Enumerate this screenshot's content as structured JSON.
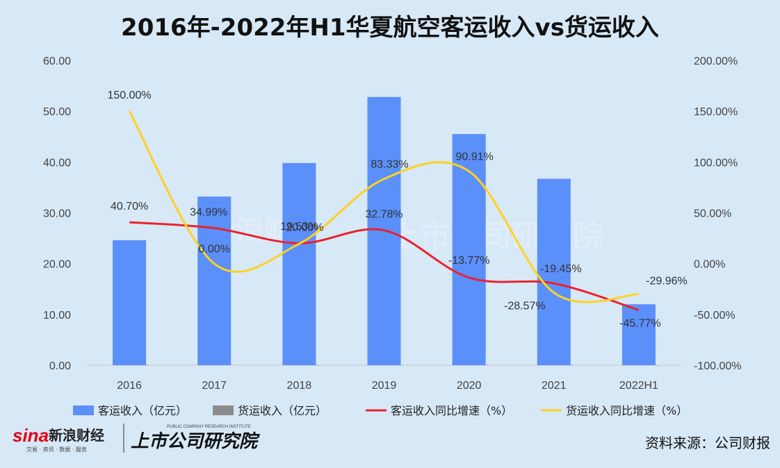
{
  "chart_data": {
    "type": "bar",
    "title": "2016年-2022年H1华夏航空客运收入vs货运收入",
    "categories": [
      "2016",
      "2017",
      "2018",
      "2019",
      "2020",
      "2021",
      "2022H1"
    ],
    "series": [
      {
        "name": "客运收入（亿元）",
        "kind": "bar",
        "axis": "left",
        "color": "#5b8ff9",
        "values": [
          24.6,
          33.2,
          39.8,
          52.8,
          45.5,
          36.7,
          12.0
        ]
      },
      {
        "name": "货运收入（亿元）",
        "kind": "bar",
        "axis": "left",
        "color": "#8c8c8c",
        "values": [
          0.05,
          0.05,
          0.05,
          0.05,
          0.05,
          0.05,
          0.02
        ]
      },
      {
        "name": "客运收入同比增速（%）",
        "kind": "line",
        "axis": "right",
        "color": "#e8232b",
        "values": [
          40.7,
          34.99,
          20.0,
          32.78,
          -13.77,
          -19.45,
          -45.77
        ],
        "labels": [
          "40.70%",
          "34.99%",
          "20.00%",
          "32.78%",
          "-13.77%",
          "-19.45%",
          "-45.77%"
        ]
      },
      {
        "name": "货运收入同比增速（%）",
        "kind": "line",
        "axis": "right",
        "color": "#ffd21f",
        "values": [
          150.0,
          0.0,
          19.53,
          83.33,
          90.91,
          -28.57,
          -29.96
        ],
        "labels": [
          "150.00%",
          "0.00%",
          "19.53%",
          "83.33%",
          "90.91%",
          "-28.57%",
          "-29.96%"
        ]
      }
    ],
    "y_left": {
      "min": 0,
      "max": 60,
      "ticks": [
        "0.00",
        "10.00",
        "20.00",
        "30.00",
        "40.00",
        "50.00",
        "60.00"
      ]
    },
    "y_right": {
      "min": -100,
      "max": 200,
      "ticks": [
        "-100.00%",
        "-50.00%",
        "0.00%",
        "50.00%",
        "100.00%",
        "150.00%",
        "200.00%"
      ]
    },
    "legend_position": "bottom",
    "grid": false
  },
  "watermark": {
    "text": "新浪财经",
    "sub": "上市公司研究院"
  },
  "footer": {
    "logo_sina": "sina",
    "logo_cn": "新浪财经",
    "logo_sub": "交易 · 资讯 · 数据 · 服务",
    "logo_institute": "上市公司研究院",
    "logo_institute_en": "PUBLIC COMPANY RESEARCH INSTITUTE",
    "source": "资料来源：公司财报"
  }
}
